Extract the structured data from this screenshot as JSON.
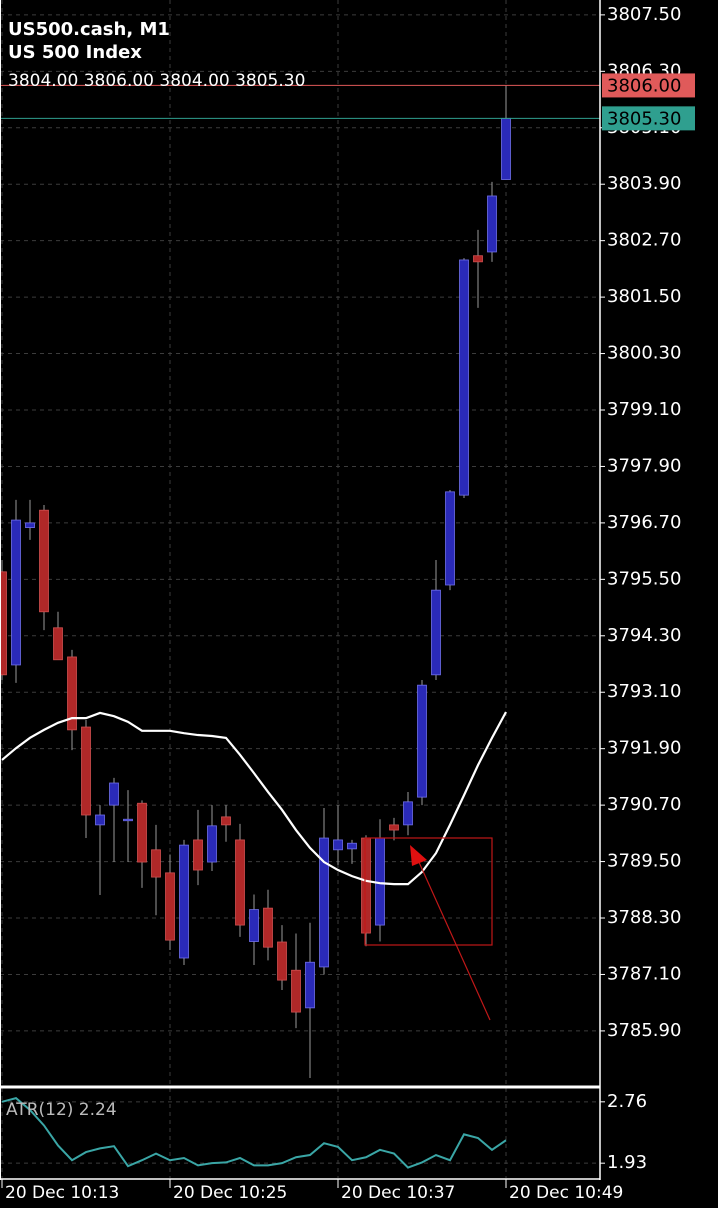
{
  "chart_data": [
    {
      "type": "candlestick",
      "title": "US500.cash, M1",
      "subtitle": "US 500 Index",
      "ohlc_text": "3804.00 3806.00 3804.00 3805.30",
      "categories": [
        "20 Dec 10:13",
        null,
        null,
        null,
        null,
        null,
        null,
        null,
        null,
        null,
        null,
        null,
        "20 Dec 10:25",
        null,
        null,
        null,
        null,
        null,
        null,
        null,
        null,
        null,
        null,
        null,
        "20 Dec 10:37",
        null,
        null,
        null,
        null,
        null,
        null,
        null,
        null,
        null,
        null,
        null,
        "20 Dec 10:49"
      ],
      "open": [
        3795.66,
        3793.68,
        3796.6,
        3796.97,
        3794.47,
        3793.85,
        3792.36,
        3790.28,
        3790.7,
        3790.38,
        3790.74,
        3789.75,
        3789.26,
        3787.45,
        3789.96,
        3789.49,
        3790.45,
        3789.96,
        3787.8,
        3788.51,
        3787.79,
        3787.19,
        3786.39,
        3787.26,
        3789.75,
        3789.77,
        3790.0,
        3788.15,
        3790.28,
        3790.28,
        3790.87,
        3793.47,
        3795.38,
        3797.29,
        3802.38,
        3802.46,
        3804.0
      ],
      "high": [
        3795.91,
        3797.19,
        3797.19,
        3797.08,
        3794.81,
        3794.0,
        3792.51,
        3790.7,
        3791.28,
        3791.02,
        3790.8,
        3790.28,
        3789.65,
        3789.96,
        3790.6,
        3790.7,
        3790.7,
        3790.3,
        3788.8,
        3788.9,
        3788.15,
        3787.97,
        3788.2,
        3790.64,
        3790.7,
        3789.96,
        3790.06,
        3790.4,
        3790.43,
        3790.98,
        3793.36,
        3795.91,
        3797.4,
        3802.33,
        3802.93,
        3803.95,
        3806.0
      ],
      "low": [
        3793.36,
        3793.3,
        3796.34,
        3794.42,
        3793.79,
        3791.87,
        3790.0,
        3788.79,
        3789.49,
        3789.49,
        3788.94,
        3788.36,
        3787.62,
        3787.3,
        3789.0,
        3789.3,
        3789.92,
        3787.9,
        3787.3,
        3787.4,
        3786.77,
        3785.96,
        3784.9,
        3787.1,
        3789.43,
        3789.45,
        3787.7,
        3787.8,
        3789.95,
        3790.06,
        3790.7,
        3793.36,
        3795.27,
        3797.23,
        3801.27,
        3802.25,
        3804.0
      ],
      "close": [
        3793.47,
        3796.76,
        3796.7,
        3794.81,
        3793.79,
        3792.3,
        3790.49,
        3790.49,
        3791.17,
        3790.4,
        3789.49,
        3789.17,
        3787.83,
        3789.85,
        3789.32,
        3790.26,
        3790.28,
        3788.15,
        3788.48,
        3787.68,
        3786.98,
        3786.3,
        3787.36,
        3790.0,
        3789.96,
        3789.89,
        3787.98,
        3790.0,
        3790.17,
        3790.77,
        3793.25,
        3795.27,
        3797.36,
        3802.29,
        3802.25,
        3803.65,
        3805.3
      ],
      "up_color": "#2a2ab8",
      "down_color": "#b02828",
      "wick_color": "#9a9a9a",
      "overlay": {
        "color": "#ffffff",
        "values": [
          3791.66,
          3791.91,
          3792.13,
          3792.3,
          3792.45,
          3792.55,
          3792.55,
          3792.66,
          3792.59,
          3792.47,
          3792.28,
          3792.28,
          3792.28,
          3792.23,
          3792.19,
          3792.17,
          3792.13,
          3791.77,
          3791.38,
          3790.98,
          3790.6,
          3790.17,
          3789.79,
          3789.49,
          3789.32,
          3789.19,
          3789.09,
          3789.04,
          3789.02,
          3789.02,
          3789.28,
          3789.68,
          3790.28,
          3790.91,
          3791.55,
          3792.13,
          3792.68
        ]
      },
      "price_lines": [
        {
          "value": 3806.0,
          "label": "3806.00",
          "color": "#e05a5a"
        },
        {
          "value": 3805.3,
          "label": "3805.30",
          "color": "#2f9f8f"
        }
      ],
      "ylim": [
        3784.75,
        3807.71
      ],
      "yticks": [
        {
          "value": 3807.5,
          "label": "3807.50"
        },
        {
          "value": 3806.3,
          "label": "3806.30"
        },
        {
          "value": 3805.1,
          "label": "3805.10"
        },
        {
          "value": 3803.9,
          "label": "3803.90"
        },
        {
          "value": 3802.7,
          "label": "3802.70"
        },
        {
          "value": 3801.5,
          "label": "3801.50"
        },
        {
          "value": 3800.3,
          "label": "3800.30"
        },
        {
          "value": 3799.1,
          "label": "3799.10"
        },
        {
          "value": 3797.9,
          "label": "3797.90"
        },
        {
          "value": 3796.7,
          "label": "3796.70"
        },
        {
          "value": 3795.5,
          "label": "3795.50"
        },
        {
          "value": 3794.3,
          "label": "3794.30"
        },
        {
          "value": 3793.1,
          "label": "3793.10"
        },
        {
          "value": 3791.9,
          "label": "3791.90"
        },
        {
          "value": 3790.7,
          "label": "3790.70"
        },
        {
          "value": 3789.5,
          "label": "3789.50"
        },
        {
          "value": 3788.3,
          "label": "3788.30"
        },
        {
          "value": 3787.1,
          "label": "3787.10"
        },
        {
          "value": 3785.9,
          "label": "3785.90"
        }
      ],
      "grid": true
    },
    {
      "type": "line",
      "label": "ATR(12) 2.24",
      "color": "#3aa6a6",
      "values": [
        2.76,
        2.81,
        2.65,
        2.44,
        2.17,
        1.97,
        2.08,
        2.13,
        2.16,
        1.89,
        1.97,
        2.06,
        1.97,
        2.0,
        1.9,
        1.93,
        1.94,
        2.0,
        1.9,
        1.9,
        1.93,
        2.01,
        2.04,
        2.2,
        2.15,
        1.97,
        2.01,
        2.11,
        2.06,
        1.87,
        1.94,
        2.04,
        1.97,
        2.32,
        2.27,
        2.11,
        2.24
      ],
      "ylim": [
        1.77,
        2.92
      ],
      "yticks": [
        2.76,
        1.93
      ],
      "grid": true
    }
  ]
}
